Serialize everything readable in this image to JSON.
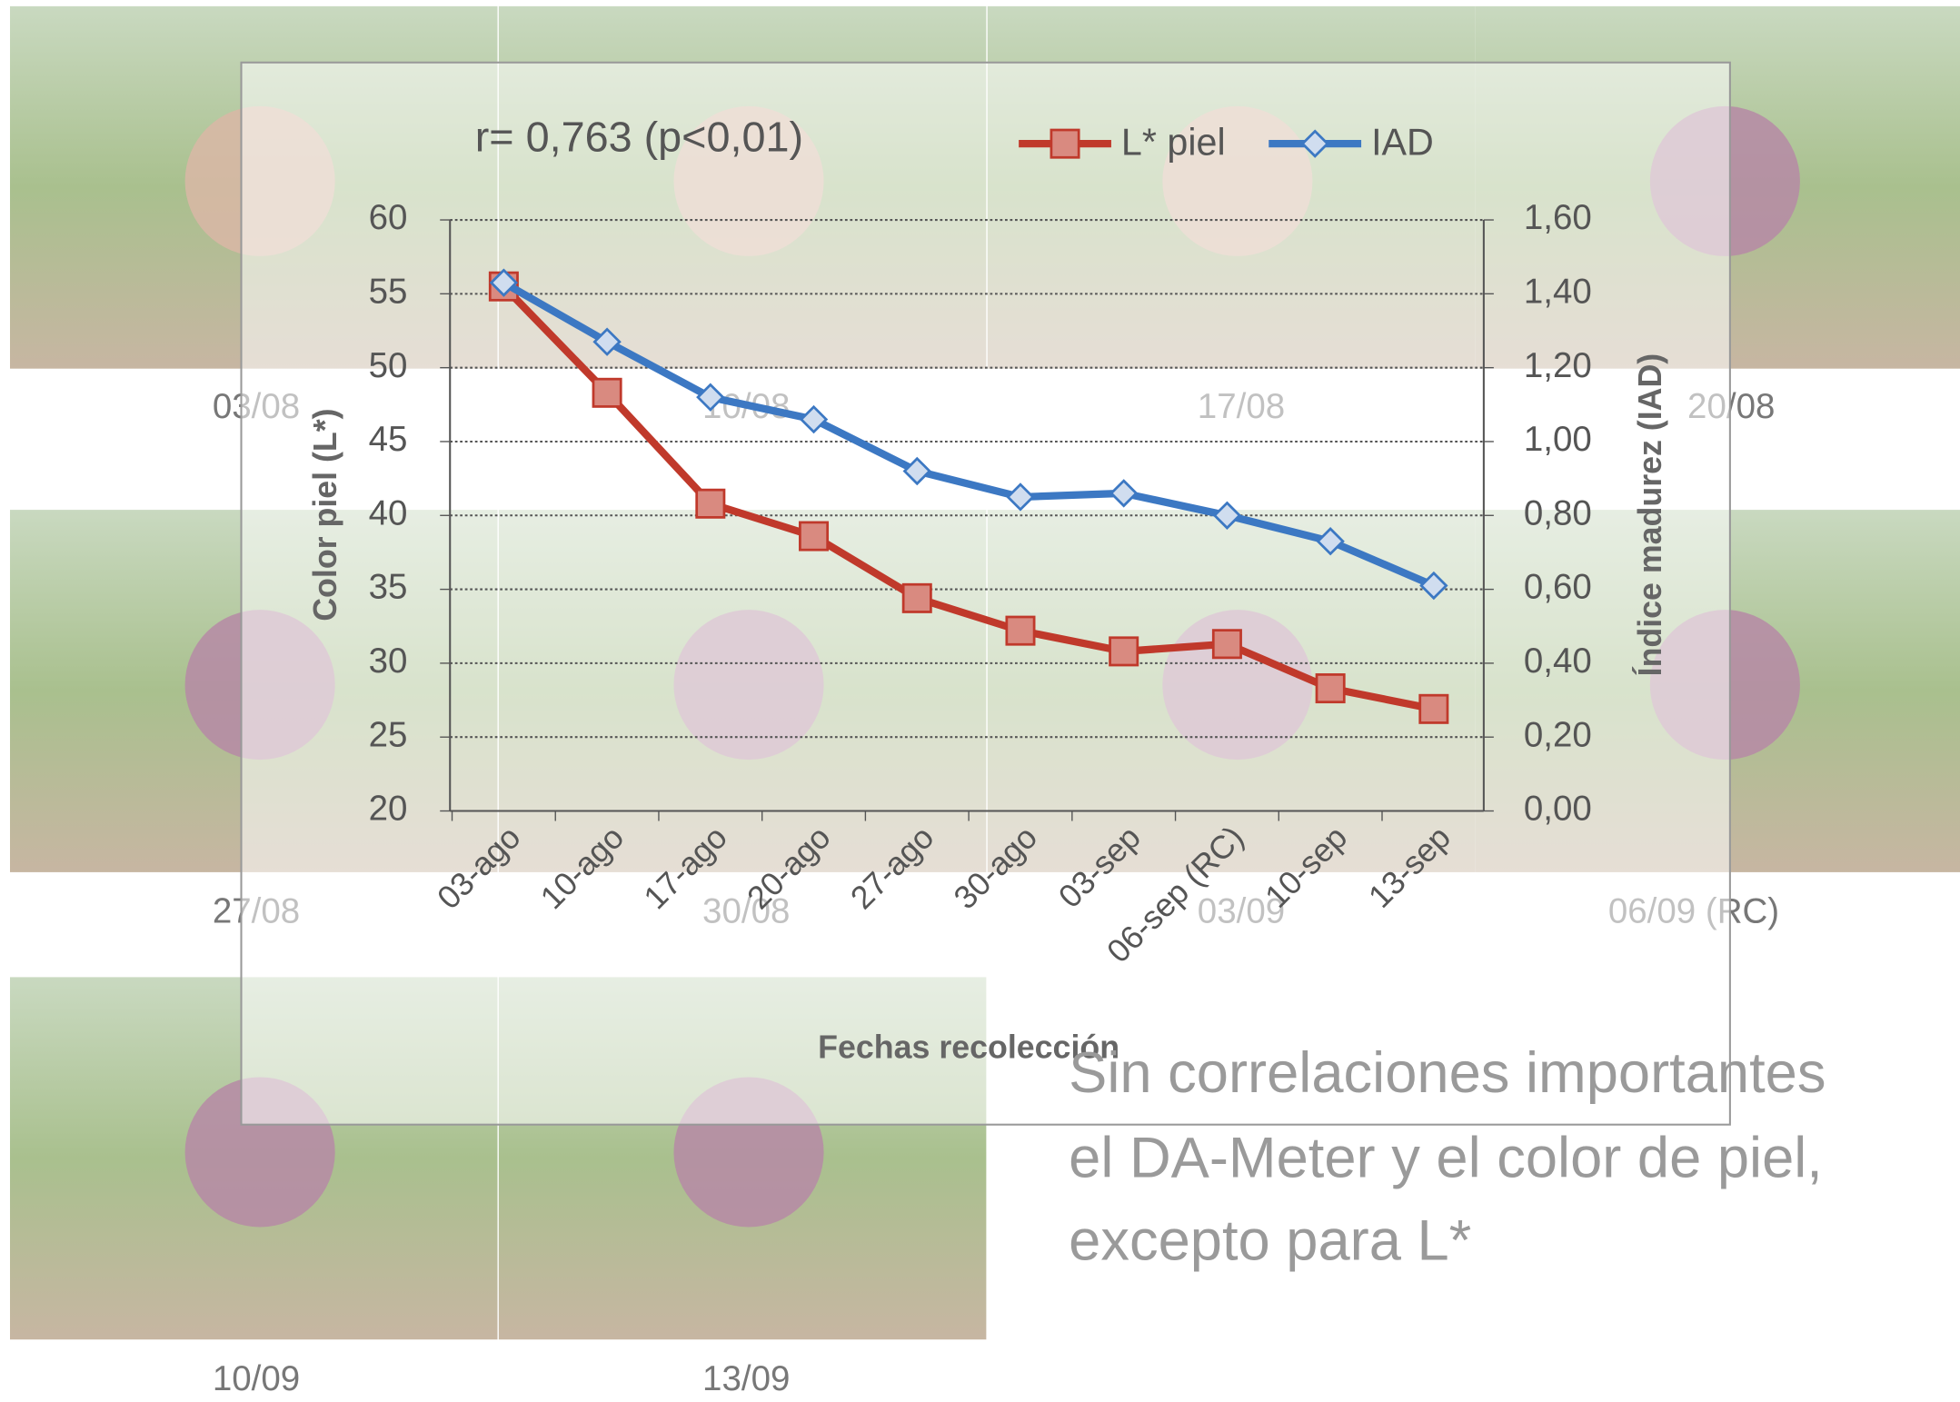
{
  "chart_data": {
    "type": "line",
    "annotation": "r= 0,763 (p<0,01)",
    "x_label": "Fechas recolección",
    "y_label": "Color piel (L*)",
    "y2_label": "Índice madurez (IAD)",
    "categories": [
      "03-ago",
      "10-ago",
      "17-ago",
      "20-ago",
      "27-ago",
      "30-ago",
      "03-sep",
      "06-sep (RC)",
      "10-sep",
      "13-sep"
    ],
    "series": [
      {
        "name": "L* piel",
        "color": "#c0392b",
        "marker": "square",
        "values": [
          55.5,
          48.3,
          40.8,
          38.6,
          34.4,
          32.2,
          30.8,
          31.3,
          28.3,
          26.9
        ]
      },
      {
        "name": "IAD",
        "color": "#3c78c3",
        "marker": "diamond",
        "axis": "y2",
        "values": [
          1.43,
          1.27,
          1.12,
          1.06,
          0.92,
          0.85,
          0.86,
          0.8,
          0.73,
          0.61
        ]
      }
    ],
    "ylim": [
      20,
      60
    ],
    "yticks": [
      20,
      25,
      30,
      35,
      40,
      45,
      50,
      55,
      60
    ],
    "y2lim": [
      0,
      1.6
    ],
    "y2ticks": [
      {
        "value": 0,
        "label": "0,00"
      },
      {
        "value": 0.2,
        "label": "0,20"
      },
      {
        "value": 0.4,
        "label": "0,40"
      },
      {
        "value": 0.6,
        "label": "0,60"
      },
      {
        "value": 0.8,
        "label": "0,80"
      },
      {
        "value": 1.0,
        "label": "1,00"
      },
      {
        "value": 1.2,
        "label": "1,20"
      },
      {
        "value": 1.4,
        "label": "1,40"
      },
      {
        "value": 1.6,
        "label": "1,60"
      }
    ],
    "grid": true,
    "legend": "top"
  },
  "photo_labels": [
    "03/08",
    "10/08",
    "17/08",
    "20/08",
    "27/08",
    "30/08",
    "03/09",
    "06/09 (RC)",
    "10/09",
    "13/09"
  ],
  "body_text": [
    "Sin correlaciones importantes",
    "el DA-Meter y el color de piel,",
    "excepto para L*"
  ]
}
